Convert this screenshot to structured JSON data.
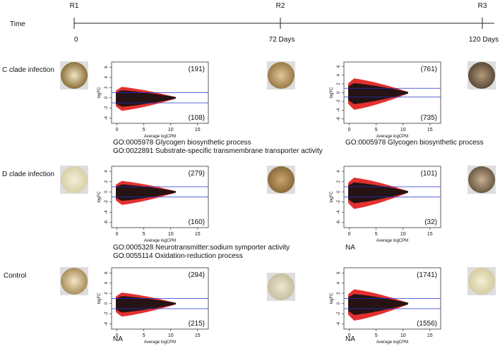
{
  "timeline": {
    "label": "Time",
    "points": [
      {
        "name": "R1",
        "day": "0"
      },
      {
        "name": "R2",
        "day": "72 Days"
      },
      {
        "name": "R3",
        "day": "120 Days"
      }
    ]
  },
  "rows": [
    {
      "label": "C clade infection",
      "panels": [
        {
          "up": "(191)",
          "down": "(108)",
          "xlabel": "Average logCPM",
          "ylabel": "logFC",
          "xlim": [
            -1,
            17
          ],
          "xticks": [
            0,
            5,
            10,
            15
          ],
          "ylim": [
            -5,
            7
          ],
          "yticks": [
            -4,
            -2,
            0,
            2,
            4,
            6
          ],
          "thresholds": [
            1,
            -1
          ],
          "go": [
            {
              "text": "GO:0005978 Glycogen biosynthetic process",
              "color": "#1f3fd0"
            },
            {
              "text": "GO:0022891 Substrate-specific transmembrane transporter activity",
              "color": "#1f3fd0"
            }
          ]
        },
        {
          "up": "(761)",
          "down": "(735)",
          "xlabel": "Average logCPM",
          "ylabel": "logFC",
          "xlim": [
            -1,
            17
          ],
          "xticks": [
            0,
            5,
            10,
            15
          ],
          "ylim": [
            -7,
            7
          ],
          "yticks": [
            -6,
            -4,
            -2,
            0,
            2,
            4,
            6
          ],
          "thresholds": [
            1,
            -1
          ],
          "go": [
            {
              "text": "GO:0005978 Glycogen biosynthetic process",
              "color": "#1f3fd0"
            }
          ]
        }
      ]
    },
    {
      "label": "D clade infection",
      "panels": [
        {
          "up": "(279)",
          "down": "(160)",
          "xlabel": "Average logCPM",
          "ylabel": "logFC",
          "xlim": [
            -1,
            17
          ],
          "xticks": [
            0,
            5,
            10,
            15
          ],
          "ylim": [
            -7,
            5
          ],
          "yticks": [
            -6,
            -4,
            -2,
            0,
            2,
            4
          ],
          "thresholds": [
            1,
            -1
          ],
          "go": [
            {
              "text": "GO:0005328 Neurotransmitter:sodium symporter activity",
              "color": "#1f3fd0"
            },
            {
              "text": "GO:0055114 Oxidation-reduction process",
              "color": "#3aa32a"
            }
          ]
        },
        {
          "up": "(101)",
          "down": "(32)",
          "xlabel": "Average logCPM",
          "ylabel": "logFC",
          "xlim": [
            -1,
            17
          ],
          "xticks": [
            0,
            5,
            10,
            15
          ],
          "ylim": [
            -7,
            5
          ],
          "yticks": [
            -6,
            -4,
            -2,
            0,
            2,
            4
          ],
          "thresholds": [
            1,
            -1
          ],
          "go": [
            {
              "text": "NA",
              "color": "#111111"
            }
          ]
        }
      ]
    },
    {
      "label": "Control",
      "panels": [
        {
          "up": "(294)",
          "down": "(215)",
          "xlabel": "Average logCPM",
          "ylabel": "logFC",
          "xlim": [
            -1,
            17
          ],
          "xticks": [
            0,
            5,
            10,
            15
          ],
          "ylim": [
            -5,
            7
          ],
          "yticks": [
            -4,
            -2,
            0,
            2,
            4,
            6
          ],
          "thresholds": [
            1,
            -1
          ],
          "go": [
            {
              "text": "NA",
              "color": "#111111"
            }
          ]
        },
        {
          "up": "(1741)",
          "down": "(1556)",
          "xlabel": "Average logCPM",
          "ylabel": "logFC",
          "xlim": [
            -1,
            17
          ],
          "xticks": [
            0,
            5,
            10,
            15
          ],
          "ylim": [
            -5,
            7
          ],
          "yticks": [
            -4,
            -2,
            0,
            2,
            4,
            6
          ],
          "thresholds": [
            1,
            -1
          ],
          "go": [
            {
              "text": "NA",
              "color": "#111111"
            }
          ]
        }
      ]
    }
  ]
}
